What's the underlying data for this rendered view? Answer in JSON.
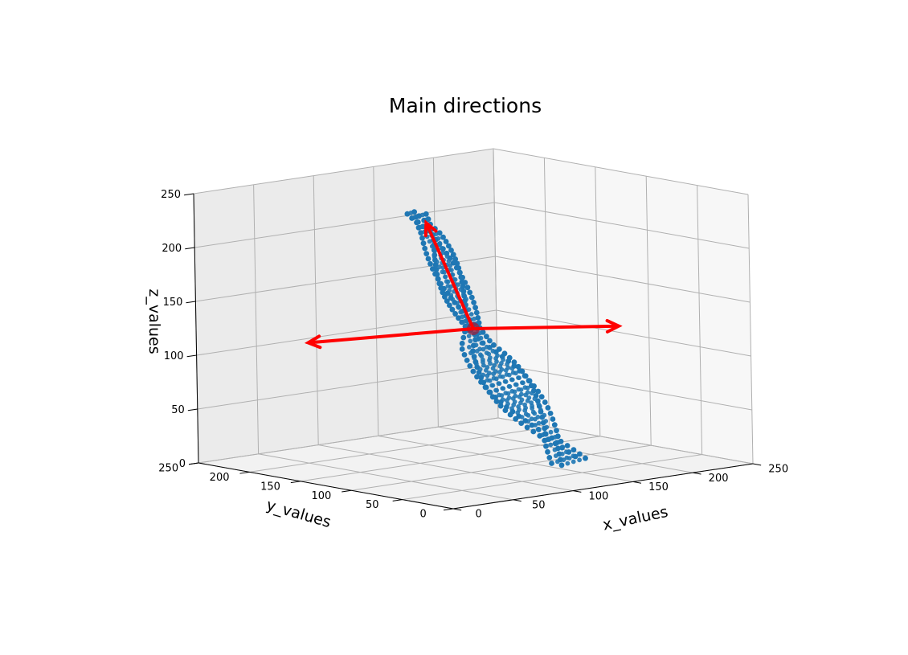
{
  "chart_data": {
    "type": "scatter",
    "title": "Main directions",
    "xlabel": "x_values",
    "ylabel": "y_values",
    "zlabel": "z_values",
    "xlim": [
      0,
      250
    ],
    "ylim": [
      0,
      250
    ],
    "zlim": [
      0,
      250
    ],
    "x_ticks": [
      "0",
      "50",
      "100",
      "150",
      "200",
      "250"
    ],
    "y_ticks": [
      "0",
      "50",
      "100",
      "150",
      "200",
      "250"
    ],
    "z_ticks": [
      "0",
      "50",
      "100",
      "150",
      "200",
      "250"
    ],
    "grid": true,
    "point_color": "#1f77b4",
    "center": {
      "x": 125,
      "y": 125,
      "z": 125,
      "color": "#8b2a4a"
    },
    "structure": {
      "description_points": [
        {
          "z": 5,
          "x": 160,
          "y": 75
        },
        {
          "z": 60,
          "x": 142,
          "y": 100
        },
        {
          "z": 110,
          "x": 125,
          "y": 122
        },
        {
          "z": 125,
          "x": 125,
          "y": 125
        },
        {
          "z": 165,
          "x": 112,
          "y": 128
        },
        {
          "z": 215,
          "x": 100,
          "y": 135
        },
        {
          "z": 235,
          "x": 92,
          "y": 140
        }
      ]
    },
    "arrows": [
      {
        "from": [
          125,
          125,
          125
        ],
        "to": [
          225,
          100,
          115
        ],
        "color": "#ff0000"
      },
      {
        "from": [
          125,
          125,
          125
        ],
        "to": [
          55,
          205,
          110
        ],
        "color": "#ff0000"
      },
      {
        "from": [
          125,
          125,
          125
        ],
        "to": [
          100,
          140,
          225
        ],
        "color": "#ff0000"
      }
    ]
  }
}
